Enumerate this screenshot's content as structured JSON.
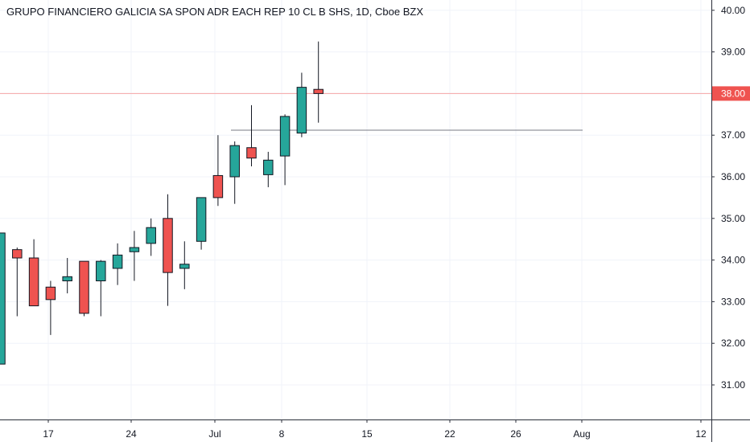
{
  "chart_data": {
    "type": "candlestick",
    "title": "GRUPO FINANCIERO GALICIA SA SPON ADR EACH REP 10 CL B SHS, 1D, Cboe BZX",
    "y_ticks": [
      "31.00",
      "32.00",
      "33.00",
      "34.00",
      "35.00",
      "36.00",
      "37.00",
      "38.00",
      "39.00",
      "40.00"
    ],
    "ylim": [
      30.25,
      40.3
    ],
    "x_ticks": [
      "17",
      "24",
      "Jul",
      "8",
      "15",
      "22",
      "26",
      "Aug",
      "12"
    ],
    "current_price_label": "38.00",
    "current_price": 38.0,
    "horizontal_line_level": 37.12,
    "up_color": "#26a69a",
    "down_color": "#ef5350",
    "price_line_color": "#f7a5a5",
    "candles": [
      {
        "open": 31.5,
        "high": 34.65,
        "low": 31.5,
        "close": 34.65
      },
      {
        "open": 34.25,
        "high": 34.3,
        "low": 32.65,
        "close": 34.05
      },
      {
        "open": 34.05,
        "high": 34.5,
        "low": 32.9,
        "close": 32.9
      },
      {
        "open": 33.35,
        "high": 33.5,
        "low": 32.2,
        "close": 33.05
      },
      {
        "open": 33.5,
        "high": 34.05,
        "low": 33.2,
        "close": 33.6
      },
      {
        "open": 33.97,
        "high": 33.97,
        "low": 32.65,
        "close": 32.72
      },
      {
        "open": 33.5,
        "high": 34.0,
        "low": 32.65,
        "close": 33.97
      },
      {
        "open": 33.8,
        "high": 34.4,
        "low": 33.4,
        "close": 34.12
      },
      {
        "open": 34.2,
        "high": 34.7,
        "low": 33.5,
        "close": 34.3
      },
      {
        "open": 34.4,
        "high": 35.0,
        "low": 34.1,
        "close": 34.78
      },
      {
        "open": 35.0,
        "high": 35.58,
        "low": 32.9,
        "close": 33.7
      },
      {
        "open": 33.8,
        "high": 34.45,
        "low": 33.3,
        "close": 33.9
      },
      {
        "open": 34.45,
        "high": 35.5,
        "low": 34.25,
        "close": 35.5
      },
      {
        "open": 36.03,
        "high": 37.0,
        "low": 35.3,
        "close": 35.5
      },
      {
        "open": 36.0,
        "high": 36.85,
        "low": 35.35,
        "close": 36.75
      },
      {
        "open": 36.7,
        "high": 37.72,
        "low": 36.25,
        "close": 36.45
      },
      {
        "open": 36.05,
        "high": 36.6,
        "low": 35.75,
        "close": 36.4
      },
      {
        "open": 36.5,
        "high": 37.5,
        "low": 35.8,
        "close": 37.45
      },
      {
        "open": 37.05,
        "high": 38.5,
        "low": 36.95,
        "close": 38.15
      },
      {
        "open": 38.1,
        "high": 39.25,
        "low": 37.3,
        "close": 38.0
      }
    ]
  }
}
